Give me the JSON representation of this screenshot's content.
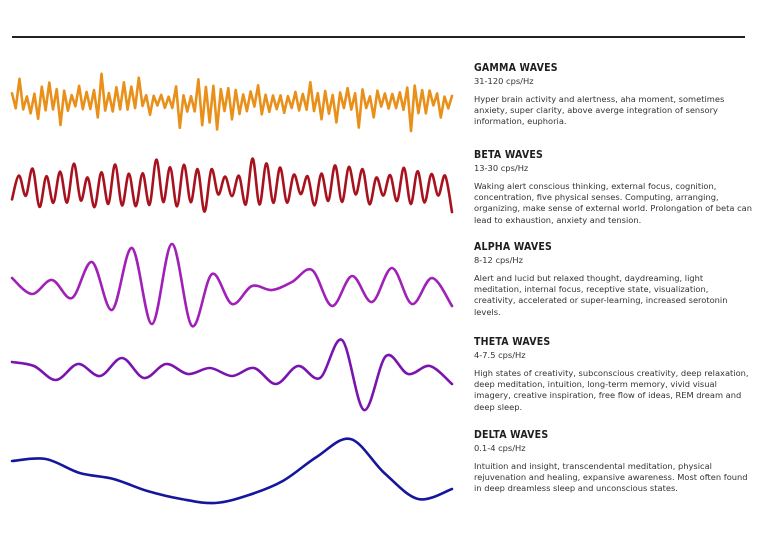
{
  "waves": [
    {
      "key": "gamma",
      "title": "GAMMA WAVES",
      "frequency": "31-120 cps/Hz",
      "description": "Hyper brain activity and alertness, aha moment, sometimes anxiety, super clarity, above averge integration of sensory information, euphoria.",
      "color": "#e8901a"
    },
    {
      "key": "beta",
      "title": "BETA WAVES",
      "frequency": "13-30 cps/Hz",
      "description": "Waking alert conscious thinking, external focus, cognition, concentration, five physical senses. Computing, arranging, organizing, make sense of external world. Prolongation of beta can lead to exhaustion, anxiety and tension.",
      "color": "#a8121e"
    },
    {
      "key": "alpha",
      "title": "ALPHA WAVES",
      "frequency": "8-12 cps/Hz",
      "description": "Alert and lucid but relaxed thought, daydreaming, light meditation, internal focus, receptive state, visualization, creativity, accelerated or super-learning, increased serotonin levels.",
      "color": "#a020b8"
    },
    {
      "key": "theta",
      "title": "THETA WAVES",
      "frequency": "4-7.5 cps/Hz",
      "description": "High states of creativity, subconscious creativity, deep relaxation, deep meditation, intuition, long-term memory, vivid visual imagery, creative inspiration, free flow of ideas, REM dream and deep sleep.",
      "color": "#7a14b0"
    },
    {
      "key": "delta",
      "title": "DELTA WAVES",
      "frequency": "0.1-4 cps/Hz",
      "description": "Intuition and insight, transcendental meditation, physical rejuvenation and healing, expansive awareness. Most often found in deep dreamless sleep and unconscious states.",
      "color": "#16169c"
    }
  ]
}
